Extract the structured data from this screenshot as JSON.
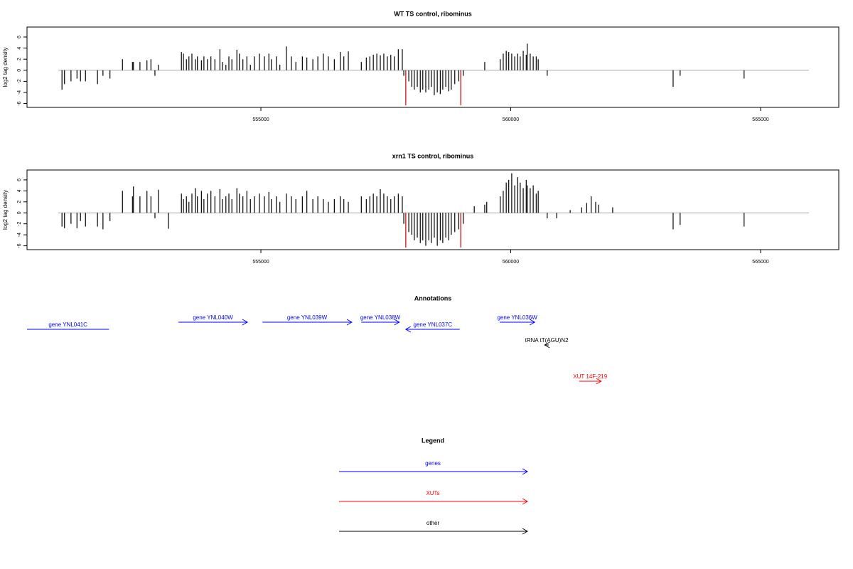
{
  "chart_data": [
    {
      "type": "bar",
      "title": "WT TS control, ribominus",
      "y_label": "log2 tag density",
      "xlim": [
        550320,
        566565
      ],
      "xticks": [
        555000,
        560000,
        565000
      ],
      "ylim": [
        -6.7,
        7.8
      ],
      "yticks": [
        -6,
        -4,
        -2,
        0,
        2,
        4,
        6
      ],
      "series": [
        {
          "color": "#000000",
          "x": [
            551020,
            551070,
            551200,
            551320,
            551390,
            551490,
            551730,
            551840,
            551980,
            552230,
            552430,
            552450,
            552580,
            552720,
            552800,
            552880,
            552950,
            553410,
            553450,
            553510,
            553560,
            553620,
            553690,
            553730,
            553810,
            553860,
            553930,
            554000,
            554080,
            554180,
            554230,
            554300,
            554360,
            554420,
            554520,
            554570,
            554640,
            554720,
            554790,
            554870,
            554970,
            555070,
            555160,
            555210,
            555310,
            555380,
            555510,
            555610,
            555700,
            555830,
            555920,
            556040,
            556140,
            556250,
            556350,
            556470,
            556590,
            556660,
            556750,
            557010,
            557110,
            557180,
            557250,
            557320,
            557390,
            557460,
            557530,
            557600,
            557670,
            557750,
            557830,
            557860,
            557960,
            558020,
            558070,
            558130,
            558190,
            558240,
            558300,
            558360,
            558410,
            558470,
            558530,
            558590,
            558640,
            558700,
            558760,
            558810,
            558880,
            558960,
            559050,
            559480,
            559790,
            559850,
            559910,
            559960,
            560020,
            560080,
            560140,
            560190,
            560250,
            560310,
            560330,
            560390,
            560450,
            560510,
            560550,
            560730,
            563250,
            563390,
            564670
          ],
          "values": [
            -3.5,
            -2.5,
            -2,
            -1.5,
            -2,
            -2,
            -2.5,
            -1,
            -1.5,
            2,
            1.5,
            1.5,
            1.5,
            1.8,
            2,
            -1,
            1,
            3.3,
            3,
            2,
            2.5,
            3,
            2,
            2.5,
            1.8,
            2.5,
            2,
            2.5,
            2,
            3.8,
            1.5,
            1,
            2.5,
            2,
            3.7,
            3,
            2,
            2.5,
            1,
            2.5,
            3,
            2.5,
            3,
            2,
            2.5,
            1,
            4.3,
            2.5,
            1.5,
            2.5,
            2.3,
            2,
            2.5,
            3,
            2.5,
            2,
            3.3,
            2.5,
            3.4,
            1.5,
            2.3,
            2.5,
            2.8,
            3,
            2.7,
            3,
            2.5,
            2.8,
            2.5,
            3.8,
            3.8,
            -1,
            -2,
            -3,
            -3.5,
            -3,
            -4,
            -3.5,
            -4,
            -3.5,
            -3,
            -4.5,
            -4,
            -4.3,
            -3.5,
            -3,
            -3.8,
            -3.5,
            -2.5,
            -2,
            -1,
            1.5,
            2,
            3,
            3.5,
            3.3,
            3,
            2.5,
            3,
            2.5,
            3.5,
            2.8,
            4.8,
            3,
            2.5,
            2.5,
            2,
            -1,
            -3,
            -1,
            -1.5
          ]
        },
        {
          "color": "#cc0000",
          "x": [
            557900,
            559000
          ],
          "values": [
            -6.3,
            -6.3
          ]
        }
      ]
    },
    {
      "type": "bar",
      "title": "xrn1 TS control, ribominus",
      "y_label": "log2 tag density",
      "xlim": [
        550320,
        566565
      ],
      "xticks": [
        555000,
        560000,
        565000
      ],
      "ylim": [
        -6.7,
        7.8
      ],
      "yticks": [
        -6,
        -4,
        -2,
        0,
        2,
        4,
        6
      ],
      "series": [
        {
          "color": "#000000",
          "x": [
            551020,
            551070,
            551200,
            551320,
            551390,
            551490,
            551730,
            551840,
            551980,
            552230,
            552430,
            552450,
            552580,
            552720,
            552800,
            552880,
            552950,
            553150,
            553410,
            553450,
            553510,
            553560,
            553620,
            553690,
            553730,
            553810,
            553860,
            553930,
            554000,
            554080,
            554180,
            554230,
            554300,
            554360,
            554420,
            554520,
            554570,
            554640,
            554720,
            554790,
            554870,
            554970,
            555070,
            555160,
            555210,
            555310,
            555380,
            555510,
            555610,
            555700,
            555830,
            555920,
            556040,
            556140,
            556250,
            556350,
            556470,
            556590,
            556660,
            556750,
            557010,
            557110,
            557180,
            557250,
            557320,
            557390,
            557460,
            557530,
            557600,
            557670,
            557750,
            557830,
            557860,
            557960,
            558020,
            558070,
            558130,
            558190,
            558240,
            558300,
            558360,
            558410,
            558470,
            558530,
            558590,
            558640,
            558700,
            558760,
            558810,
            558880,
            558960,
            559050,
            559270,
            559480,
            559520,
            559790,
            559850,
            559910,
            559960,
            560020,
            560080,
            560140,
            560190,
            560250,
            560310,
            560330,
            560390,
            560450,
            560510,
            560550,
            560730,
            560920,
            561190,
            561420,
            561520,
            561610,
            561700,
            561760,
            562040,
            563250,
            563390,
            564670
          ],
          "values": [
            -2.5,
            -2.8,
            -2,
            -2.8,
            -1.5,
            -2.5,
            -2.5,
            -3,
            -1.5,
            4,
            3,
            4.8,
            3,
            4,
            3,
            -1,
            4.2,
            -2.9,
            3.5,
            2.5,
            3,
            2,
            3.5,
            4.5,
            3,
            4,
            2.5,
            3.5,
            4,
            3,
            4.3,
            2.5,
            3,
            3.5,
            2.5,
            4.5,
            3.5,
            3,
            4,
            2.5,
            3,
            3.5,
            3,
            3.8,
            2.5,
            3,
            2,
            3.5,
            3,
            2.5,
            3,
            4,
            2.5,
            3,
            2.5,
            2,
            2.5,
            3,
            2.5,
            2,
            3,
            2.5,
            3,
            3.5,
            3,
            4.3,
            3.5,
            3,
            2.5,
            3,
            3.5,
            3,
            -2,
            -3.5,
            -4,
            -5,
            -4.5,
            -5.5,
            -5,
            -6,
            -5,
            -5.5,
            -4.5,
            -6,
            -5,
            -5.5,
            -4.5,
            -5,
            -4,
            -3.5,
            -3,
            -2,
            1.2,
            1.5,
            2,
            3,
            4,
            5.5,
            6,
            7.2,
            5,
            6.5,
            5.5,
            4.5,
            6,
            5,
            4.5,
            5,
            3.5,
            4,
            -1,
            -1,
            0.5,
            1,
            1.8,
            3,
            2,
            1.5,
            1,
            -3,
            -2.2,
            -2.5
          ]
        },
        {
          "color": "#cc0000",
          "x": [
            557900,
            559000
          ],
          "values": [
            -6.3,
            -6.3
          ]
        }
      ]
    }
  ],
  "annotations": {
    "title": "Annotations",
    "features": [
      {
        "label": "gene YNL041C",
        "color": "#0000ff",
        "start": 550320,
        "end": 551960
      },
      {
        "label": "gene YNL040W",
        "color": "#0000ff",
        "start": 553350,
        "end": 554730,
        "strand": "+"
      },
      {
        "label": "gene YNL039W",
        "color": "#0000ff",
        "start": 555030,
        "end": 556820,
        "strand": "+"
      },
      {
        "label": "gene YNL038W",
        "color": "#0000ff",
        "start": 557010,
        "end": 557770,
        "strand": "+"
      },
      {
        "label": "gene YNL037C",
        "color": "#0000ff",
        "start": 557900,
        "end": 558980,
        "strand": "-"
      },
      {
        "label": "gene YNL036W",
        "color": "#0000ff",
        "start": 559780,
        "end": 560480,
        "strand": "+"
      },
      {
        "label": "tRNA tT(AGU)N2",
        "color": "#000000",
        "start": 560680,
        "end": 560760,
        "strand": "-"
      },
      {
        "label": "XUT 14F-219",
        "color": "#ff0000",
        "start": 561370,
        "end": 561810,
        "strand": "+"
      }
    ]
  },
  "legend": {
    "title": "Legend",
    "items": [
      {
        "label": "genes",
        "color": "#0000ff"
      },
      {
        "label": "XUTs",
        "color": "#ff0000"
      },
      {
        "label": "other",
        "color": "#000000"
      }
    ]
  }
}
